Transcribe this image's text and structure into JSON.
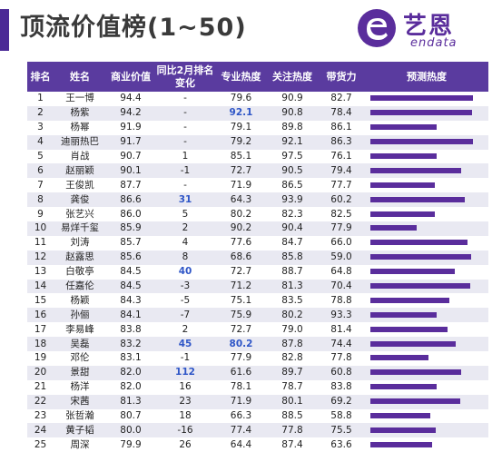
{
  "title": "顶流价值榜(1~50)",
  "logo": {
    "cn": "艺恩",
    "en": "endata"
  },
  "columns": [
    "排名",
    "姓名",
    "商业价值",
    "同比2月排名变化",
    "专业热度",
    "关注热度",
    "带货力",
    "预测热度"
  ],
  "colors": {
    "header_bg": "#5a3b9f",
    "bar": "#5a2d9c",
    "highlight": "#2f56c7",
    "stripe": "#e9e9f2",
    "accent": "#4b2a96"
  },
  "rows": [
    {
      "rank": "1",
      "name": "王一博",
      "commercial": "94.4",
      "change": "-",
      "professional": "79.6",
      "attention": "90.9",
      "sales": "82.7",
      "forecast": 0.96
    },
    {
      "rank": "2",
      "name": "杨紫",
      "commercial": "94.2",
      "change": "-",
      "professional": "92.1",
      "attention": "90.8",
      "sales": "78.4",
      "forecast": 0.95
    },
    {
      "rank": "3",
      "name": "杨幂",
      "commercial": "91.9",
      "change": "-",
      "professional": "79.1",
      "attention": "89.8",
      "sales": "86.1",
      "forecast": 0.62
    },
    {
      "rank": "4",
      "name": "迪丽热巴",
      "commercial": "91.7",
      "change": "-",
      "professional": "79.2",
      "attention": "92.1",
      "sales": "86.3",
      "forecast": 0.96
    },
    {
      "rank": "5",
      "name": "肖战",
      "commercial": "90.7",
      "change": "1",
      "professional": "85.1",
      "attention": "97.5",
      "sales": "76.1",
      "forecast": 0.62
    },
    {
      "rank": "6",
      "name": "赵丽颖",
      "commercial": "90.1",
      "change": "-1",
      "professional": "72.7",
      "attention": "90.5",
      "sales": "79.4",
      "forecast": 0.85
    },
    {
      "rank": "7",
      "name": "王俊凯",
      "commercial": "87.7",
      "change": "-",
      "professional": "71.9",
      "attention": "86.5",
      "sales": "77.7",
      "forecast": 0.6
    },
    {
      "rank": "8",
      "name": "龚俊",
      "commercial": "86.6",
      "change": "31",
      "professional": "64.3",
      "attention": "93.9",
      "sales": "60.2",
      "forecast": 0.88
    },
    {
      "rank": "9",
      "name": "张艺兴",
      "commercial": "86.0",
      "change": "5",
      "professional": "80.2",
      "attention": "82.3",
      "sales": "82.5",
      "forecast": 0.6
    },
    {
      "rank": "10",
      "name": "易烊千玺",
      "commercial": "85.9",
      "change": "2",
      "professional": "90.2",
      "attention": "90.4",
      "sales": "77.9",
      "forecast": 0.43
    },
    {
      "rank": "11",
      "name": "刘涛",
      "commercial": "85.7",
      "change": "4",
      "professional": "77.6",
      "attention": "84.7",
      "sales": "66.0",
      "forecast": 0.91
    },
    {
      "rank": "12",
      "name": "赵露思",
      "commercial": "85.6",
      "change": "8",
      "professional": "68.6",
      "attention": "85.8",
      "sales": "59.0",
      "forecast": 0.94
    },
    {
      "rank": "13",
      "name": "白敬亭",
      "commercial": "84.5",
      "change": "40",
      "professional": "72.7",
      "attention": "88.7",
      "sales": "64.8",
      "forecast": 0.79
    },
    {
      "rank": "14",
      "name": "任嘉伦",
      "commercial": "84.5",
      "change": "-3",
      "professional": "71.2",
      "attention": "81.3",
      "sales": "70.4",
      "forecast": 0.93
    },
    {
      "rank": "15",
      "name": "杨颖",
      "commercial": "84.3",
      "change": "-5",
      "professional": "75.1",
      "attention": "83.5",
      "sales": "78.8",
      "forecast": 0.74
    },
    {
      "rank": "16",
      "name": "孙俪",
      "commercial": "84.1",
      "change": "-7",
      "professional": "75.9",
      "attention": "80.2",
      "sales": "93.3",
      "forecast": 0.62
    },
    {
      "rank": "17",
      "name": "李易峰",
      "commercial": "83.8",
      "change": "2",
      "professional": "72.7",
      "attention": "79.0",
      "sales": "81.4",
      "forecast": 0.72
    },
    {
      "rank": "18",
      "name": "吴磊",
      "commercial": "83.2",
      "change": "45",
      "professional": "80.2",
      "attention": "87.8",
      "sales": "74.4",
      "forecast": 0.8
    },
    {
      "rank": "19",
      "name": "邓伦",
      "commercial": "83.1",
      "change": "-1",
      "professional": "77.9",
      "attention": "82.8",
      "sales": "77.8",
      "forecast": 0.54
    },
    {
      "rank": "20",
      "name": "景甜",
      "commercial": "82.0",
      "change": "112",
      "professional": "61.6",
      "attention": "89.7",
      "sales": "60.8",
      "forecast": 0.85
    },
    {
      "rank": "21",
      "name": "杨洋",
      "commercial": "82.0",
      "change": "16",
      "professional": "78.1",
      "attention": "78.7",
      "sales": "83.8",
      "forecast": 0.62
    },
    {
      "rank": "22",
      "name": "宋茜",
      "commercial": "81.3",
      "change": "23",
      "professional": "71.9",
      "attention": "80.1",
      "sales": "69.2",
      "forecast": 0.84
    },
    {
      "rank": "23",
      "name": "张哲瀚",
      "commercial": "80.7",
      "change": "18",
      "professional": "66.3",
      "attention": "88.5",
      "sales": "58.8",
      "forecast": 0.56
    },
    {
      "rank": "24",
      "name": "黄子韬",
      "commercial": "80.0",
      "change": "-16",
      "professional": "77.4",
      "attention": "77.8",
      "sales": "75.5",
      "forecast": 0.61
    },
    {
      "rank": "25",
      "name": "周深",
      "commercial": "79.9",
      "change": "26",
      "professional": "64.4",
      "attention": "87.4",
      "sales": "63.6",
      "forecast": 0.58
    }
  ],
  "highlights": [
    {
      "row": 1,
      "field": "professional"
    },
    {
      "row": 7,
      "field": "change"
    },
    {
      "row": 12,
      "field": "change"
    },
    {
      "row": 17,
      "field": "change"
    },
    {
      "row": 17,
      "field": "professional"
    },
    {
      "row": 19,
      "field": "change"
    }
  ]
}
